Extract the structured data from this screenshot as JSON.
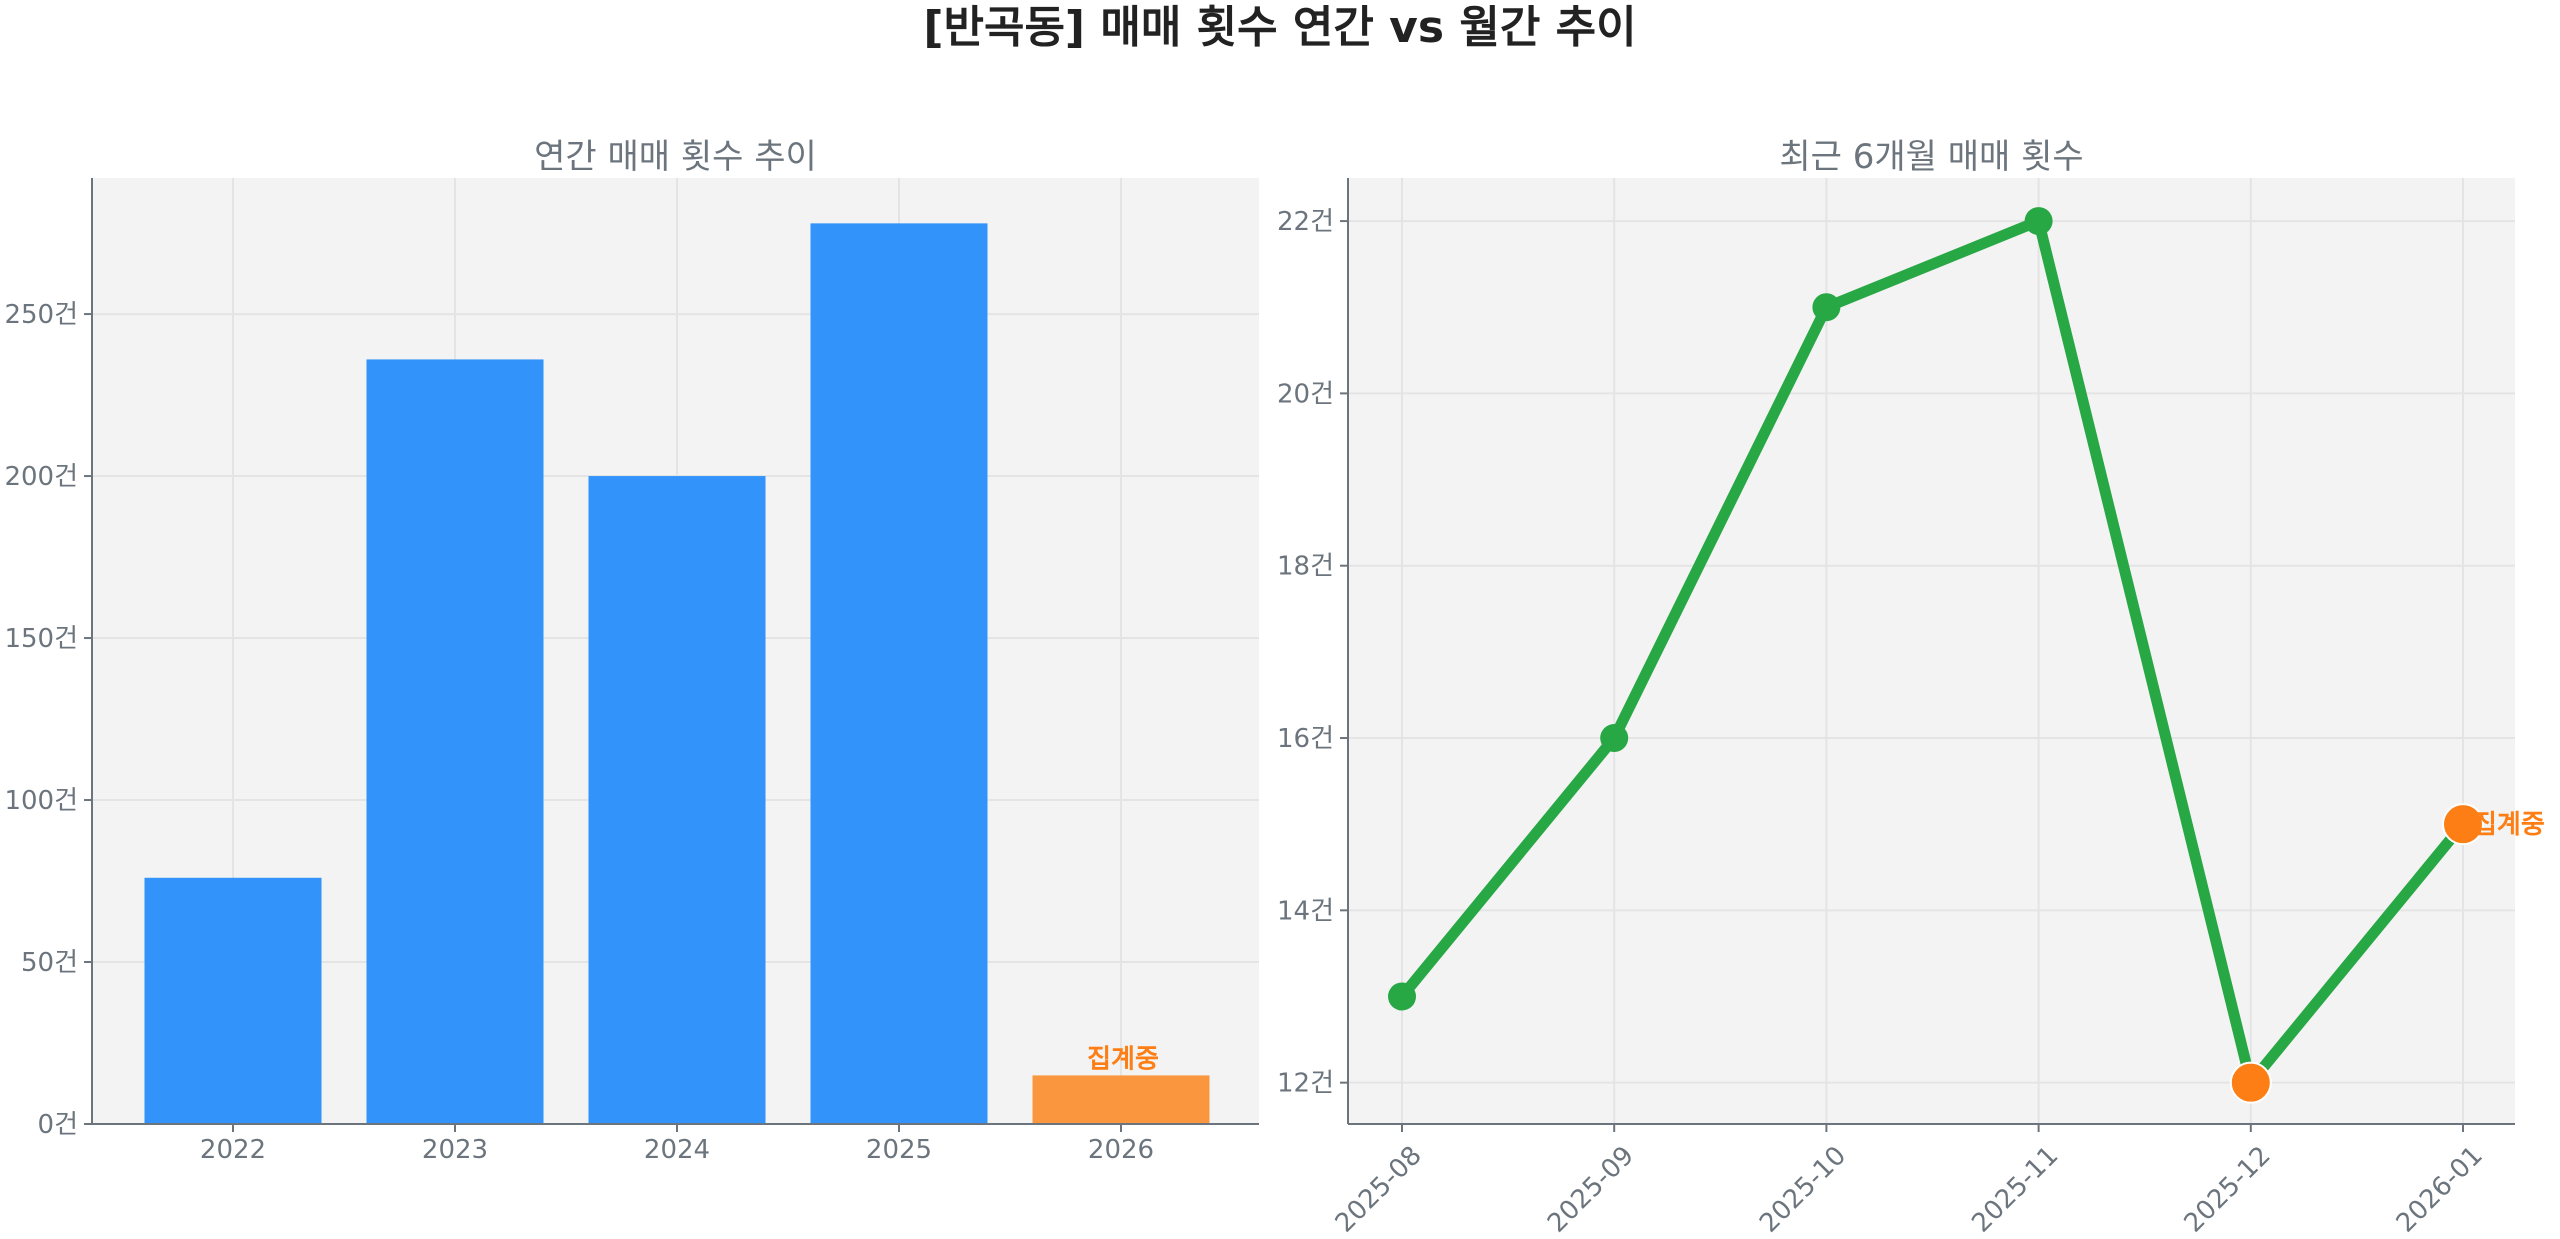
{
  "figure": {
    "suptitle": "[반곡동] 매매 횟수 연간 vs 월간 추이"
  },
  "colors": {
    "bar_primary": "#3293fa",
    "bar_partial": "#fa973e",
    "line": "#28a745",
    "marker_highlight": "#fd7e14",
    "annotation": "#fd7e14",
    "plot_bg": "#f3f3f3",
    "axis": "#6c757d",
    "tick_text": "#6c757d",
    "title_text": "#6c757d",
    "suptitle_text": "#222222",
    "grid": "#e4e4e4"
  },
  "chart_data": [
    {
      "type": "bar",
      "title": "연간 매매 횟수 추이",
      "xlabel": "",
      "ylabel": "",
      "categories": [
        "2022",
        "2023",
        "2024",
        "2025",
        "2026"
      ],
      "values": [
        76,
        236,
        200,
        278,
        15
      ],
      "bar_colors": [
        "#3293fa",
        "#3293fa",
        "#3293fa",
        "#3293fa",
        "#fa973e"
      ],
      "annotations": [
        {
          "category": "2026",
          "text": "집계중"
        }
      ],
      "yticks": [
        0,
        50,
        100,
        150,
        200,
        250
      ],
      "ytick_labels": [
        "0건",
        "50건",
        "100건",
        "150건",
        "200건",
        "250건"
      ],
      "ylim": [
        0,
        292
      ],
      "grid": true
    },
    {
      "type": "line",
      "title": "최근 6개월 매매 횟수",
      "xlabel": "",
      "ylabel": "",
      "categories": [
        "2025-08",
        "2025-09",
        "2025-10",
        "2025-11",
        "2025-12",
        "2026-01"
      ],
      "values": [
        13,
        16,
        21,
        22,
        12,
        15
      ],
      "highlight_points": [
        {
          "category": "2025-12",
          "reason": "min"
        },
        {
          "category": "2026-01",
          "reason": "partial"
        }
      ],
      "annotations": [
        {
          "category": "2026-01",
          "text": "집계중"
        }
      ],
      "yticks": [
        12,
        14,
        16,
        18,
        20,
        22
      ],
      "ytick_labels": [
        "12건",
        "14건",
        "16건",
        "18건",
        "20건",
        "22건"
      ],
      "ylim": [
        11.52,
        22.5
      ],
      "xtick_rotation": 45,
      "grid": true
    }
  ]
}
